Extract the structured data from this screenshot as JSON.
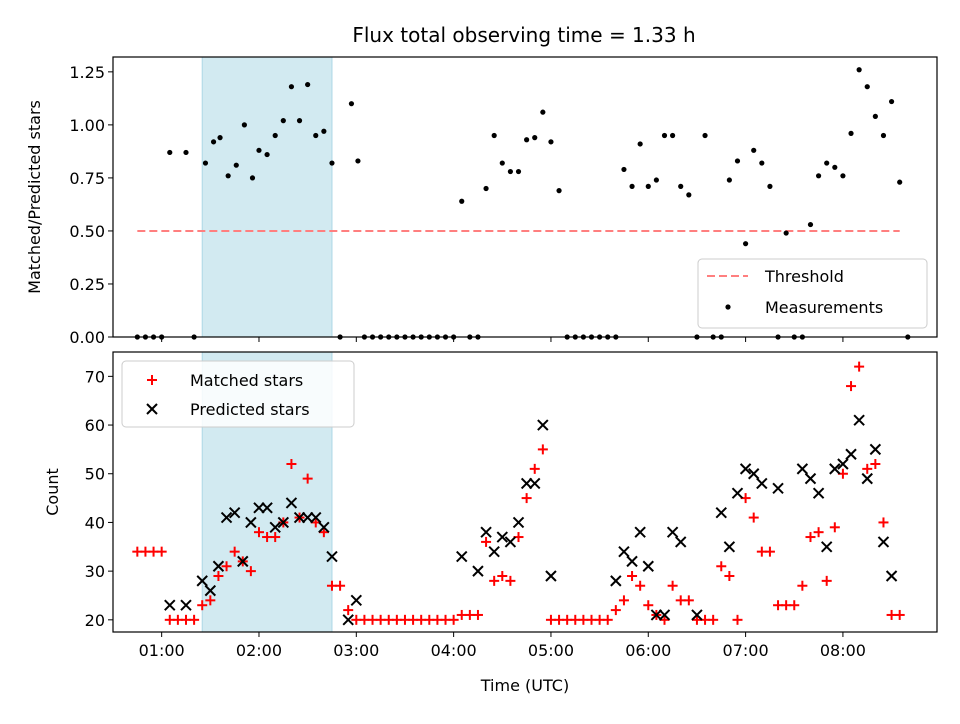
{
  "title": "Flux total observing time = 1.33 h",
  "colors": {
    "threshold": "#ff7f7f",
    "measurement": "#000000",
    "matched": "#ff0000",
    "predicted": "#000000",
    "highlight": "#add8e6"
  },
  "chart_data": [
    {
      "type": "scatter",
      "ylabel": "Matched/Predicted stars",
      "ylim": [
        0,
        1.32
      ],
      "xlim": [
        "00:30",
        "08:58"
      ],
      "yticks": [
        0.0,
        0.25,
        0.5,
        0.75,
        1.0,
        1.25
      ],
      "ytick_labels": [
        "0.00",
        "0.25",
        "0.50",
        "0.75",
        "1.00",
        "1.25"
      ],
      "highlight_span": [
        "01:25",
        "02:45"
      ],
      "legend": {
        "placement": "lower-right",
        "entries": [
          "Threshold",
          "Measurements"
        ]
      },
      "threshold": {
        "name": "Threshold",
        "x": [
          "00:45",
          "08:35"
        ],
        "y": 0.5
      },
      "series": [
        {
          "name": "Measurements",
          "points": [
            [
              "00:45",
              0
            ],
            [
              "00:50",
              0
            ],
            [
              "00:55",
              0
            ],
            [
              "01:00",
              0
            ],
            [
              "01:05",
              0.87
            ],
            [
              "01:15",
              0.87
            ],
            [
              "01:20",
              0
            ],
            [
              "01:27",
              0.82
            ],
            [
              "01:32",
              0.92
            ],
            [
              "01:36",
              0.94
            ],
            [
              "01:41",
              0.76
            ],
            [
              "01:46",
              0.81
            ],
            [
              "01:51",
              1.0
            ],
            [
              "01:56",
              0.75
            ],
            [
              "02:00",
              0.88
            ],
            [
              "02:05",
              0.86
            ],
            [
              "02:10",
              0.95
            ],
            [
              "02:15",
              1.02
            ],
            [
              "02:20",
              1.18
            ],
            [
              "02:25",
              1.02
            ],
            [
              "02:30",
              1.19
            ],
            [
              "02:35",
              0.95
            ],
            [
              "02:40",
              0.97
            ],
            [
              "02:45",
              0.82
            ],
            [
              "02:50",
              0
            ],
            [
              "02:57",
              1.1
            ],
            [
              "03:01",
              0.83
            ],
            [
              "03:05",
              0
            ],
            [
              "03:10",
              0
            ],
            [
              "03:15",
              0
            ],
            [
              "03:20",
              0
            ],
            [
              "03:25",
              0
            ],
            [
              "03:30",
              0
            ],
            [
              "03:35",
              0
            ],
            [
              "03:40",
              0
            ],
            [
              "03:45",
              0
            ],
            [
              "03:50",
              0
            ],
            [
              "03:55",
              0
            ],
            [
              "04:00",
              0
            ],
            [
              "04:05",
              0.64
            ],
            [
              "04:10",
              0
            ],
            [
              "04:15",
              0
            ],
            [
              "04:20",
              0.7
            ],
            [
              "04:25",
              0.95
            ],
            [
              "04:30",
              0.82
            ],
            [
              "04:35",
              0.78
            ],
            [
              "04:40",
              0.78
            ],
            [
              "04:45",
              0.93
            ],
            [
              "04:50",
              0.94
            ],
            [
              "04:55",
              1.06
            ],
            [
              "05:00",
              0.92
            ],
            [
              "05:05",
              0.69
            ],
            [
              "05:10",
              0
            ],
            [
              "05:15",
              0
            ],
            [
              "05:20",
              0
            ],
            [
              "05:25",
              0
            ],
            [
              "05:30",
              0
            ],
            [
              "05:35",
              0
            ],
            [
              "05:40",
              0
            ],
            [
              "05:45",
              0.79
            ],
            [
              "05:50",
              0.71
            ],
            [
              "05:55",
              0.91
            ],
            [
              "06:00",
              0.71
            ],
            [
              "06:05",
              0.74
            ],
            [
              "06:10",
              0.95
            ],
            [
              "06:15",
              0.95
            ],
            [
              "06:20",
              0.71
            ],
            [
              "06:25",
              0.67
            ],
            [
              "06:30",
              0
            ],
            [
              "06:35",
              0.95
            ],
            [
              "06:40",
              0
            ],
            [
              "06:45",
              0
            ],
            [
              "06:50",
              0.74
            ],
            [
              "06:55",
              0.83
            ],
            [
              "07:00",
              0.44
            ],
            [
              "07:05",
              0.88
            ],
            [
              "07:10",
              0.82
            ],
            [
              "07:15",
              0.71
            ],
            [
              "07:20",
              0
            ],
            [
              "07:25",
              0.49
            ],
            [
              "07:30",
              0
            ],
            [
              "07:35",
              0
            ],
            [
              "07:40",
              0.53
            ],
            [
              "07:45",
              0.76
            ],
            [
              "07:50",
              0.82
            ],
            [
              "07:55",
              0.8
            ],
            [
              "08:00",
              0.76
            ],
            [
              "08:05",
              0.96
            ],
            [
              "08:10",
              1.26
            ],
            [
              "08:15",
              1.18
            ],
            [
              "08:20",
              1.04
            ],
            [
              "08:25",
              0.95
            ],
            [
              "08:30",
              1.11
            ],
            [
              "08:35",
              0.73
            ],
            [
              "08:40",
              0
            ]
          ]
        }
      ]
    },
    {
      "type": "scatter",
      "xlabel": "Time (UTC)",
      "ylabel": "Count",
      "ylim": [
        17.5,
        75
      ],
      "xlim": [
        "00:30",
        "08:58"
      ],
      "xticks": [
        "01:00",
        "02:00",
        "03:00",
        "04:00",
        "05:00",
        "06:00",
        "07:00",
        "08:00"
      ],
      "yticks": [
        20,
        30,
        40,
        50,
        60,
        70
      ],
      "highlight_span": [
        "01:25",
        "02:45"
      ],
      "legend": {
        "placement": "upper-left",
        "entries": [
          "Matched stars",
          "Predicted stars"
        ]
      },
      "series": [
        {
          "name": "Matched stars",
          "points": [
            [
              "00:45",
              34
            ],
            [
              "00:50",
              34
            ],
            [
              "00:55",
              34
            ],
            [
              "01:00",
              34
            ],
            [
              "01:05",
              20
            ],
            [
              "01:10",
              20
            ],
            [
              "01:15",
              20
            ],
            [
              "01:20",
              20
            ],
            [
              "01:25",
              23
            ],
            [
              "01:30",
              24
            ],
            [
              "01:35",
              29
            ],
            [
              "01:40",
              31
            ],
            [
              "01:45",
              34
            ],
            [
              "01:50",
              32
            ],
            [
              "01:55",
              30
            ],
            [
              "02:00",
              38
            ],
            [
              "02:05",
              37
            ],
            [
              "02:10",
              37
            ],
            [
              "02:15",
              40
            ],
            [
              "02:20",
              52
            ],
            [
              "02:25",
              41
            ],
            [
              "02:30",
              49
            ],
            [
              "02:35",
              40
            ],
            [
              "02:40",
              38
            ],
            [
              "02:45",
              27
            ],
            [
              "02:50",
              27
            ],
            [
              "02:55",
              22
            ],
            [
              "03:00",
              20
            ],
            [
              "03:05",
              20
            ],
            [
              "03:10",
              20
            ],
            [
              "03:15",
              20
            ],
            [
              "03:20",
              20
            ],
            [
              "03:25",
              20
            ],
            [
              "03:30",
              20
            ],
            [
              "03:35",
              20
            ],
            [
              "03:40",
              20
            ],
            [
              "03:45",
              20
            ],
            [
              "03:50",
              20
            ],
            [
              "03:55",
              20
            ],
            [
              "04:00",
              20
            ],
            [
              "04:05",
              21
            ],
            [
              "04:10",
              21
            ],
            [
              "04:15",
              21
            ],
            [
              "04:20",
              36
            ],
            [
              "04:25",
              28
            ],
            [
              "04:30",
              29
            ],
            [
              "04:35",
              28
            ],
            [
              "04:40",
              37
            ],
            [
              "04:45",
              45
            ],
            [
              "04:50",
              51
            ],
            [
              "04:55",
              55
            ],
            [
              "05:00",
              20
            ],
            [
              "05:05",
              20
            ],
            [
              "05:10",
              20
            ],
            [
              "05:15",
              20
            ],
            [
              "05:20",
              20
            ],
            [
              "05:25",
              20
            ],
            [
              "05:30",
              20
            ],
            [
              "05:35",
              20
            ],
            [
              "05:40",
              22
            ],
            [
              "05:45",
              24
            ],
            [
              "05:50",
              29
            ],
            [
              "05:55",
              27
            ],
            [
              "06:00",
              23
            ],
            [
              "06:05",
              21
            ],
            [
              "06:10",
              20
            ],
            [
              "06:15",
              27
            ],
            [
              "06:20",
              24
            ],
            [
              "06:25",
              24
            ],
            [
              "06:30",
              20
            ],
            [
              "06:35",
              20
            ],
            [
              "06:40",
              20
            ],
            [
              "06:45",
              31
            ],
            [
              "06:50",
              29
            ],
            [
              "06:55",
              20
            ],
            [
              "07:00",
              45
            ],
            [
              "07:05",
              41
            ],
            [
              "07:10",
              34
            ],
            [
              "07:15",
              34
            ],
            [
              "07:20",
              23
            ],
            [
              "07:25",
              23
            ],
            [
              "07:30",
              23
            ],
            [
              "07:35",
              27
            ],
            [
              "07:40",
              37
            ],
            [
              "07:45",
              38
            ],
            [
              "07:50",
              28
            ],
            [
              "07:55",
              39
            ],
            [
              "08:00",
              50
            ],
            [
              "08:05",
              68
            ],
            [
              "08:10",
              72
            ],
            [
              "08:15",
              51
            ],
            [
              "08:20",
              52
            ],
            [
              "08:25",
              40
            ],
            [
              "08:30",
              21
            ],
            [
              "08:35",
              21
            ]
          ]
        },
        {
          "name": "Predicted stars",
          "points": [
            [
              "01:05",
              23
            ],
            [
              "01:15",
              23
            ],
            [
              "01:25",
              28
            ],
            [
              "01:30",
              26
            ],
            [
              "01:35",
              31
            ],
            [
              "01:40",
              41
            ],
            [
              "01:45",
              42
            ],
            [
              "01:50",
              32
            ],
            [
              "01:55",
              40
            ],
            [
              "02:00",
              43
            ],
            [
              "02:05",
              43
            ],
            [
              "02:10",
              39
            ],
            [
              "02:15",
              40
            ],
            [
              "02:20",
              44
            ],
            [
              "02:25",
              41
            ],
            [
              "02:30",
              41
            ],
            [
              "02:35",
              41
            ],
            [
              "02:40",
              39
            ],
            [
              "02:45",
              33
            ],
            [
              "02:55",
              20
            ],
            [
              "03:00",
              24
            ],
            [
              "04:05",
              33
            ],
            [
              "04:15",
              30
            ],
            [
              "04:20",
              38
            ],
            [
              "04:25",
              34
            ],
            [
              "04:30",
              37
            ],
            [
              "04:35",
              36
            ],
            [
              "04:40",
              40
            ],
            [
              "04:45",
              48
            ],
            [
              "04:50",
              48
            ],
            [
              "04:55",
              60
            ],
            [
              "05:00",
              29
            ],
            [
              "05:40",
              28
            ],
            [
              "05:45",
              34
            ],
            [
              "05:50",
              32
            ],
            [
              "05:55",
              38
            ],
            [
              "06:00",
              31
            ],
            [
              "06:05",
              21
            ],
            [
              "06:10",
              21
            ],
            [
              "06:15",
              38
            ],
            [
              "06:20",
              36
            ],
            [
              "06:30",
              21
            ],
            [
              "06:45",
              42
            ],
            [
              "06:50",
              35
            ],
            [
              "06:55",
              46
            ],
            [
              "07:00",
              51
            ],
            [
              "07:05",
              50
            ],
            [
              "07:10",
              48
            ],
            [
              "07:20",
              47
            ],
            [
              "07:35",
              51
            ],
            [
              "07:40",
              49
            ],
            [
              "07:45",
              46
            ],
            [
              "07:50",
              35
            ],
            [
              "07:55",
              51
            ],
            [
              "08:00",
              52
            ],
            [
              "08:05",
              54
            ],
            [
              "08:10",
              61
            ],
            [
              "08:15",
              49
            ],
            [
              "08:20",
              55
            ],
            [
              "08:25",
              36
            ],
            [
              "08:30",
              29
            ]
          ]
        }
      ]
    }
  ]
}
